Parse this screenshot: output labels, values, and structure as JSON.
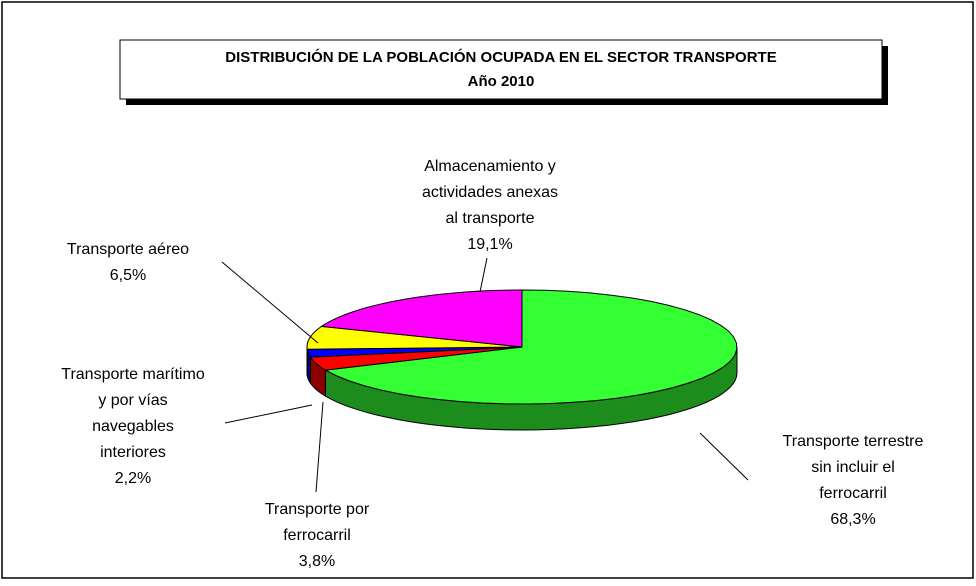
{
  "chart_data": {
    "type": "pie3d",
    "title": "DISTRIBUCIÓN DE LA POBLACIÓN OCUPADA EN EL SECTOR TRANSPORTE",
    "subtitle": "Año 2010",
    "categories": [
      "Transporte terrestre\nsin incluir el\nferrocarril",
      "Transporte por\nferrocarril",
      "Transporte marítimo\ny por vías\nnavegables\ninteriores",
      "Transporte aéreo",
      "Almacenamiento y\nactividades anexas\nal transporte"
    ],
    "values": [
      68.3,
      3.8,
      2.2,
      6.5,
      19.1
    ],
    "value_labels": [
      "68,3%",
      "3,8%",
      "2,2%",
      "6,5%",
      "19,1%"
    ],
    "colors": [
      "#33ff33",
      "#ff0000",
      "#0000ff",
      "#ffff00",
      "#ff00ff"
    ]
  }
}
